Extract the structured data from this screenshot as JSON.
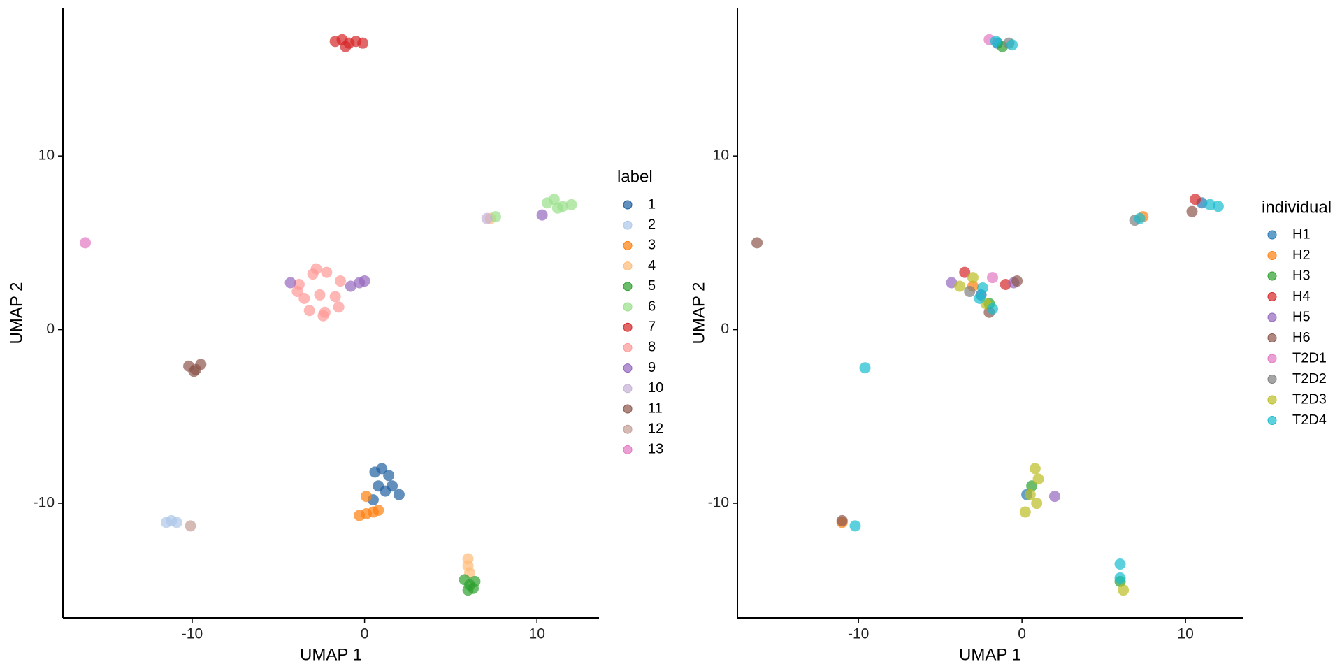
{
  "chart_data": [
    {
      "type": "scatter",
      "x_label": "UMAP 1",
      "y_label": "UMAP 2",
      "legend_title": "label",
      "legend": "right",
      "xlim": [
        -17.5,
        13.6
      ],
      "ylim": [
        -16.6,
        18.5
      ],
      "xticks": [
        -10,
        0,
        10
      ],
      "yticks": [
        -10,
        0,
        10
      ],
      "grid": false,
      "series": [
        {
          "name": "1",
          "color": "#1f5fa0",
          "x": [
            0.6,
            1.0,
            1.4,
            0.8,
            1.2,
            0.5,
            1.6,
            2.0
          ],
          "y": [
            -8.2,
            -8.0,
            -8.4,
            -9.0,
            -9.3,
            -9.8,
            -9.0,
            -9.5
          ]
        },
        {
          "name": "2",
          "color": "#aec7e8",
          "x": [
            -11.5,
            -11.2,
            -10.9
          ],
          "y": [
            -11.1,
            -11.0,
            -11.1
          ]
        },
        {
          "name": "3",
          "color": "#ff7f0e",
          "x": [
            -0.3,
            0.1,
            0.5,
            0.8,
            0.1
          ],
          "y": [
            -10.7,
            -10.6,
            -10.5,
            -10.4,
            -9.6
          ]
        },
        {
          "name": "4",
          "color": "#ffbb78",
          "x": [
            6.0,
            6.0,
            6.1,
            7.3
          ],
          "y": [
            -13.2,
            -13.6,
            -14.0,
            6.4
          ]
        },
        {
          "name": "5",
          "color": "#2ca02c",
          "x": [
            5.8,
            6.1,
            6.4,
            6.0,
            6.3
          ],
          "y": [
            -14.4,
            -14.7,
            -14.5,
            -15.0,
            -14.9
          ]
        },
        {
          "name": "6",
          "color": "#98df8a",
          "x": [
            10.6,
            11.0,
            11.5,
            12.0,
            11.2,
            7.6
          ],
          "y": [
            7.3,
            7.5,
            7.1,
            7.2,
            7.0,
            6.5
          ]
        },
        {
          "name": "7",
          "color": "#d62728",
          "x": [
            -1.7,
            -1.3,
            -0.9,
            -0.5,
            -0.1,
            -1.1
          ],
          "y": [
            16.6,
            16.7,
            16.5,
            16.6,
            16.5,
            16.3
          ]
        },
        {
          "name": "8",
          "color": "#ff9896",
          "x": [
            -3.8,
            -3.0,
            -2.2,
            -1.4,
            -3.5,
            -2.6,
            -1.7,
            -3.2,
            -2.3,
            -1.5,
            -2.8,
            -2.4,
            -3.9
          ],
          "y": [
            2.6,
            3.2,
            3.3,
            2.8,
            1.8,
            2.0,
            1.9,
            1.1,
            1.0,
            1.3,
            3.5,
            0.8,
            2.2
          ]
        },
        {
          "name": "9",
          "color": "#9467bd",
          "x": [
            -4.3,
            -0.8,
            -0.3,
            0.0,
            10.3
          ],
          "y": [
            2.7,
            2.5,
            2.7,
            2.8,
            6.6
          ]
        },
        {
          "name": "10",
          "color": "#c5b0d5",
          "x": [
            7.1
          ],
          "y": [
            6.4
          ]
        },
        {
          "name": "11",
          "color": "#8c564b",
          "x": [
            -10.2,
            -9.8,
            -9.5,
            -9.9
          ],
          "y": [
            -2.1,
            -2.3,
            -2.0,
            -2.4
          ]
        },
        {
          "name": "12",
          "color": "#c49c94",
          "x": [
            -10.1
          ],
          "y": [
            -11.3
          ]
        },
        {
          "name": "13",
          "color": "#e377c2",
          "x": [
            -16.2
          ],
          "y": [
            5.0
          ]
        }
      ]
    },
    {
      "type": "scatter",
      "x_label": "UMAP 1",
      "y_label": "UMAP 2",
      "legend_title": "individual",
      "legend": "right",
      "xlim": [
        -17.4,
        13.5
      ],
      "ylim": [
        -16.6,
        18.5
      ],
      "xticks": [
        -10,
        0,
        10
      ],
      "yticks": [
        -10,
        0,
        10
      ],
      "grid": false,
      "series": [
        {
          "name": "H1",
          "color": "#1f77b4",
          "x": [
            -1.5,
            -2.5,
            0.3,
            11.0
          ],
          "y": [
            16.5,
            2.0,
            -9.5,
            7.3
          ]
        },
        {
          "name": "H2",
          "color": "#ff7f0e",
          "x": [
            7.4,
            -3.0,
            -11.0
          ],
          "y": [
            6.5,
            2.5,
            -11.1
          ]
        },
        {
          "name": "H3",
          "color": "#2ca02c",
          "x": [
            -1.2,
            -2.0,
            0.6,
            6.0
          ],
          "y": [
            16.3,
            1.5,
            -9.0,
            -14.5
          ]
        },
        {
          "name": "H4",
          "color": "#d62728",
          "x": [
            -3.5,
            -1.0,
            10.6
          ],
          "y": [
            3.3,
            2.6,
            7.5
          ]
        },
        {
          "name": "H5",
          "color": "#9467bd",
          "x": [
            -0.5,
            2.0,
            -4.3
          ],
          "y": [
            2.7,
            -9.6,
            2.7
          ]
        },
        {
          "name": "H6",
          "color": "#8c564b",
          "x": [
            -16.2,
            -0.3,
            10.4,
            -11.0,
            -2.0
          ],
          "y": [
            5.0,
            2.8,
            6.8,
            -11.0,
            1.0
          ]
        },
        {
          "name": "T2D1",
          "color": "#e377c2",
          "x": [
            -2.0,
            -1.8
          ],
          "y": [
            16.7,
            3.0
          ]
        },
        {
          "name": "T2D2",
          "color": "#7f7f7f",
          "x": [
            -0.8,
            6.9,
            -3.2
          ],
          "y": [
            16.5,
            6.3,
            2.2
          ]
        },
        {
          "name": "T2D3",
          "color": "#bcbd22",
          "x": [
            -3.8,
            -3.0,
            -2.2,
            0.8,
            1.0,
            0.5,
            0.2,
            0.9,
            6.2
          ],
          "y": [
            2.5,
            3.0,
            1.5,
            -8.0,
            -8.6,
            -9.5,
            -10.5,
            -10.0,
            -15.0
          ]
        },
        {
          "name": "T2D4",
          "color": "#17becf",
          "x": [
            -1.6,
            -0.6,
            -2.6,
            -1.8,
            -2.4,
            11.5,
            12.0,
            7.2,
            -9.6,
            -10.2,
            6.0,
            6.0
          ],
          "y": [
            16.6,
            16.4,
            1.8,
            1.2,
            2.4,
            7.2,
            7.1,
            6.4,
            -2.2,
            -11.3,
            -13.5,
            -14.3
          ]
        }
      ]
    }
  ]
}
